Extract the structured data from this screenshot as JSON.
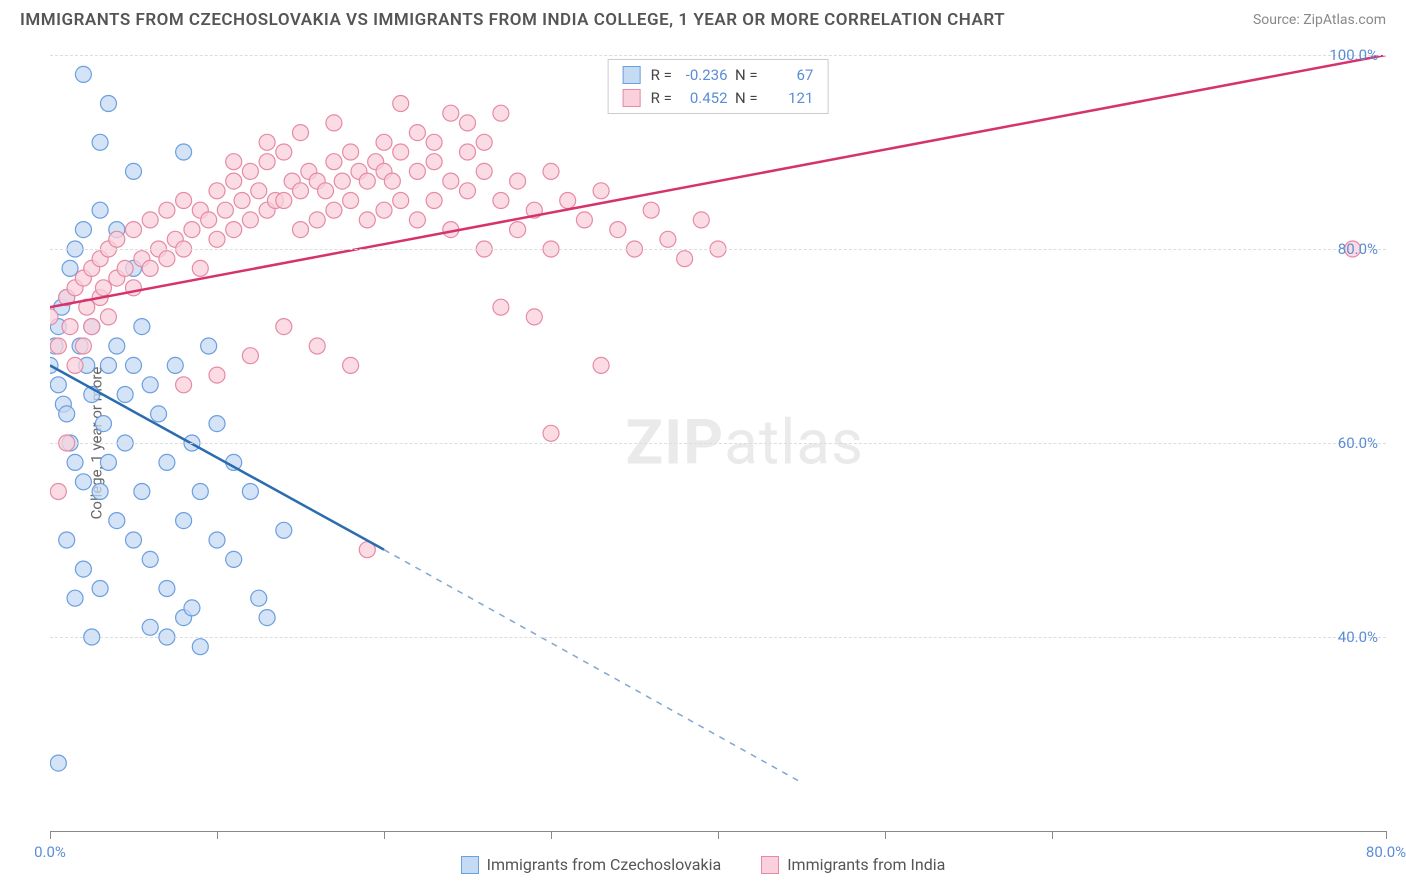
{
  "header": {
    "title": "IMMIGRANTS FROM CZECHOSLOVAKIA VS IMMIGRANTS FROM INDIA COLLEGE, 1 YEAR OR MORE CORRELATION CHART",
    "source": "Source: ZipAtlas.com"
  },
  "chart": {
    "type": "scatter",
    "y_label": "College, 1 year or more",
    "watermark": "ZIPatlas",
    "x_range": [
      0,
      80
    ],
    "y_range": [
      20,
      100
    ],
    "x_ticks": [
      0,
      10,
      20,
      30,
      40,
      50,
      60,
      80
    ],
    "x_tick_labels": {
      "0": "0.0%",
      "80": "80.0%"
    },
    "y_gridlines": [
      40,
      60,
      80,
      100
    ],
    "y_tick_labels": {
      "40": "40.0%",
      "60": "60.0%",
      "80": "80.0%",
      "100": "100.0%"
    },
    "grid_color": "#dddddd",
    "axis_color": "#888888",
    "tick_label_color": "#5b8dd6",
    "label_color": "#666666",
    "background_color": "#ffffff",
    "series": [
      {
        "name": "Immigrants from Czechoslovakia",
        "color_fill": "#c5daf3",
        "color_stroke": "#6a9fe0",
        "line_color": "#2b6cb0",
        "marker_radius": 8,
        "marker_opacity": 0.75,
        "R": "-0.236",
        "N": "67",
        "trend": {
          "x1": 0,
          "y1": 68,
          "x2": 20,
          "y2": 49,
          "solid_until_x": 20,
          "dash_to_x": 45,
          "dash_to_y": 25
        },
        "points": [
          [
            0,
            68
          ],
          [
            0.3,
            70
          ],
          [
            0.5,
            72
          ],
          [
            0.5,
            66
          ],
          [
            0.7,
            74
          ],
          [
            0.8,
            64
          ],
          [
            1,
            75
          ],
          [
            1,
            63
          ],
          [
            1.2,
            78
          ],
          [
            1.2,
            60
          ],
          [
            1.5,
            80
          ],
          [
            1.5,
            58
          ],
          [
            1.8,
            70
          ],
          [
            2,
            82
          ],
          [
            2,
            56
          ],
          [
            2,
            98
          ],
          [
            2.2,
            68
          ],
          [
            2.5,
            65
          ],
          [
            2.5,
            72
          ],
          [
            3,
            84
          ],
          [
            3,
            55
          ],
          [
            3,
            91
          ],
          [
            3.2,
            62
          ],
          [
            3.5,
            68
          ],
          [
            3.5,
            58
          ],
          [
            4,
            70
          ],
          [
            4,
            52
          ],
          [
            4,
            82
          ],
          [
            4.5,
            65
          ],
          [
            4.5,
            60
          ],
          [
            5,
            68
          ],
          [
            5,
            50
          ],
          [
            5,
            78
          ],
          [
            5.5,
            72
          ],
          [
            5.5,
            55
          ],
          [
            6,
            66
          ],
          [
            6,
            48
          ],
          [
            6.5,
            63
          ],
          [
            7,
            58
          ],
          [
            7,
            45
          ],
          [
            7.5,
            68
          ],
          [
            8,
            52
          ],
          [
            8,
            42
          ],
          [
            8,
            90
          ],
          [
            8.5,
            60
          ],
          [
            9,
            55
          ],
          [
            9,
            39
          ],
          [
            9.5,
            70
          ],
          [
            10,
            50
          ],
          [
            10,
            62
          ],
          [
            11,
            48
          ],
          [
            11,
            58
          ],
          [
            12,
            55
          ],
          [
            12.5,
            44
          ],
          [
            13,
            42
          ],
          [
            14,
            51
          ],
          [
            2,
            47
          ],
          [
            3,
            45
          ],
          [
            0.5,
            27
          ],
          [
            1,
            50
          ],
          [
            1.5,
            44
          ],
          [
            2.5,
            40
          ],
          [
            6,
            41
          ],
          [
            7,
            40
          ],
          [
            8.5,
            43
          ],
          [
            3.5,
            95
          ],
          [
            5,
            88
          ]
        ]
      },
      {
        "name": "Immigrants from India",
        "color_fill": "#f9d0db",
        "color_stroke": "#e68aa5",
        "line_color": "#d6336c",
        "marker_radius": 8,
        "marker_opacity": 0.75,
        "R": "0.452",
        "N": "121",
        "trend": {
          "x1": 0,
          "y1": 74,
          "x2": 80,
          "y2": 100,
          "solid_until_x": 80
        },
        "points": [
          [
            0,
            73
          ],
          [
            0.5,
            55
          ],
          [
            0.5,
            70
          ],
          [
            1,
            75
          ],
          [
            1,
            60
          ],
          [
            1.2,
            72
          ],
          [
            1.5,
            76
          ],
          [
            1.5,
            68
          ],
          [
            2,
            77
          ],
          [
            2,
            70
          ],
          [
            2.2,
            74
          ],
          [
            2.5,
            78
          ],
          [
            2.5,
            72
          ],
          [
            3,
            79
          ],
          [
            3,
            75
          ],
          [
            3.2,
            76
          ],
          [
            3.5,
            80
          ],
          [
            3.5,
            73
          ],
          [
            4,
            81
          ],
          [
            4,
            77
          ],
          [
            4.5,
            78
          ],
          [
            5,
            82
          ],
          [
            5,
            76
          ],
          [
            5.5,
            79
          ],
          [
            6,
            83
          ],
          [
            6,
            78
          ],
          [
            6.5,
            80
          ],
          [
            7,
            84
          ],
          [
            7,
            79
          ],
          [
            7.5,
            81
          ],
          [
            8,
            85
          ],
          [
            8,
            80
          ],
          [
            8.5,
            82
          ],
          [
            9,
            84
          ],
          [
            9,
            78
          ],
          [
            9.5,
            83
          ],
          [
            10,
            86
          ],
          [
            10,
            81
          ],
          [
            10.5,
            84
          ],
          [
            11,
            87
          ],
          [
            11,
            82
          ],
          [
            11.5,
            85
          ],
          [
            12,
            88
          ],
          [
            12,
            83
          ],
          [
            12.5,
            86
          ],
          [
            13,
            89
          ],
          [
            13,
            84
          ],
          [
            13.5,
            85
          ],
          [
            14,
            90
          ],
          [
            14,
            85
          ],
          [
            14.5,
            87
          ],
          [
            15,
            86
          ],
          [
            15,
            82
          ],
          [
            15.5,
            88
          ],
          [
            16,
            87
          ],
          [
            16,
            83
          ],
          [
            16.5,
            86
          ],
          [
            17,
            89
          ],
          [
            17,
            84
          ],
          [
            17.5,
            87
          ],
          [
            18,
            90
          ],
          [
            18,
            85
          ],
          [
            18.5,
            88
          ],
          [
            19,
            87
          ],
          [
            19,
            83
          ],
          [
            19.5,
            89
          ],
          [
            20,
            88
          ],
          [
            20,
            84
          ],
          [
            20.5,
            87
          ],
          [
            21,
            90
          ],
          [
            21,
            85
          ],
          [
            22,
            88
          ],
          [
            22,
            83
          ],
          [
            23,
            89
          ],
          [
            23,
            85
          ],
          [
            24,
            87
          ],
          [
            24,
            82
          ],
          [
            25,
            90
          ],
          [
            25,
            86
          ],
          [
            26,
            88
          ],
          [
            26,
            80
          ],
          [
            27,
            85
          ],
          [
            27,
            74
          ],
          [
            28,
            87
          ],
          [
            28,
            82
          ],
          [
            29,
            84
          ],
          [
            30,
            88
          ],
          [
            30,
            80
          ],
          [
            31,
            85
          ],
          [
            32,
            83
          ],
          [
            33,
            86
          ],
          [
            34,
            82
          ],
          [
            35,
            80
          ],
          [
            36,
            84
          ],
          [
            37,
            81
          ],
          [
            38,
            79
          ],
          [
            39,
            83
          ],
          [
            40,
            80
          ],
          [
            25,
            93
          ],
          [
            27,
            94
          ],
          [
            20,
            91
          ],
          [
            22,
            92
          ],
          [
            18,
            68
          ],
          [
            16,
            70
          ],
          [
            14,
            72
          ],
          [
            12,
            69
          ],
          [
            10,
            67
          ],
          [
            8,
            66
          ],
          [
            30,
            61
          ],
          [
            33,
            68
          ],
          [
            29,
            73
          ],
          [
            19,
            49
          ],
          [
            24,
            94
          ],
          [
            26,
            91
          ],
          [
            21,
            95
          ],
          [
            23,
            91
          ],
          [
            15,
            92
          ],
          [
            17,
            93
          ],
          [
            11,
            89
          ],
          [
            13,
            91
          ],
          [
            78,
            80
          ]
        ]
      }
    ]
  },
  "legend": {
    "items": [
      {
        "label": "Immigrants from Czechoslovakia",
        "fill": "#c5daf3",
        "stroke": "#6a9fe0"
      },
      {
        "label": "Immigrants from India",
        "fill": "#f9d0db",
        "stroke": "#e68aa5"
      }
    ]
  }
}
